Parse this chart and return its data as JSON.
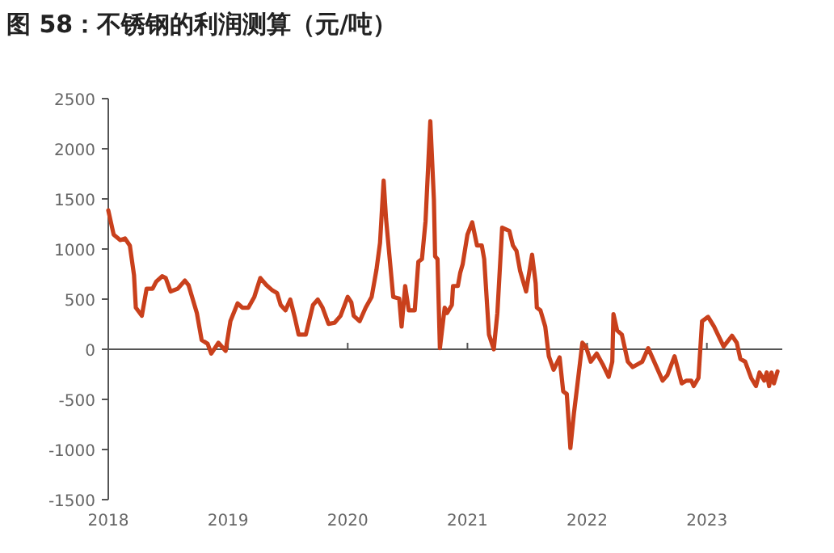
{
  "chart_data": {
    "type": "line",
    "title": "图 58：不锈钢的利润测算（元/吨）",
    "x": [
      2018.0,
      2018.045,
      2018.1,
      2018.14,
      2018.18,
      2018.215,
      2018.23,
      2018.28,
      2018.32,
      2018.37,
      2018.4,
      2018.45,
      2018.48,
      2018.52,
      2018.58,
      2018.64,
      2018.67,
      2018.74,
      2018.78,
      2018.83,
      2018.86,
      2018.92,
      2018.98,
      2019.02,
      2019.08,
      2019.12,
      2019.17,
      2019.22,
      2019.27,
      2019.32,
      2019.37,
      2019.41,
      2019.44,
      2019.48,
      2019.52,
      2019.56,
      2019.59,
      2019.65,
      2019.71,
      2019.75,
      2019.79,
      2019.84,
      2019.89,
      2019.94,
      2020.0,
      2020.03,
      2020.05,
      2020.1,
      2020.15,
      2020.2,
      2020.24,
      2020.27,
      2020.3,
      2020.32,
      2020.38,
      2020.43,
      2020.45,
      2020.48,
      2020.51,
      2020.56,
      2020.59,
      2020.62,
      2020.65,
      2020.69,
      2020.72,
      2020.73,
      2020.75,
      2020.77,
      2020.81,
      2020.83,
      2020.87,
      2020.88,
      2020.92,
      2020.94,
      2020.96,
      2021.0,
      2021.04,
      2021.08,
      2021.12,
      2021.14,
      2021.18,
      2021.22,
      2021.25,
      2021.29,
      2021.35,
      2021.38,
      2021.41,
      2021.44,
      2021.49,
      2021.54,
      2021.57,
      2021.58,
      2021.61,
      2021.65,
      2021.68,
      2021.72,
      2021.77,
      2021.8,
      2021.83,
      2021.86,
      2021.89,
      2021.92,
      2021.96,
      2021.99,
      2022.03,
      2022.08,
      2022.13,
      2022.18,
      2022.21,
      2022.22,
      2022.25,
      2022.29,
      2022.34,
      2022.38,
      2022.42,
      2022.46,
      2022.51,
      2022.56,
      2022.59,
      2022.63,
      2022.67,
      2022.73,
      2022.79,
      2022.83,
      2022.87,
      2022.89,
      2022.93,
      2022.96,
      2023.01,
      2023.06,
      2023.14,
      2023.21,
      2023.25,
      2023.28,
      2023.32,
      2023.37,
      2023.41,
      2023.44,
      2023.48,
      2023.5,
      2023.52,
      2023.54,
      2023.56,
      2023.59
    ],
    "series": [
      {
        "color": "#c9401c",
        "values": [
          1385,
          1143,
          1089,
          1105,
          1035,
          738,
          415,
          334,
          604,
          604,
          674,
          728,
          711,
          577,
          604,
          685,
          641,
          361,
          92,
          54,
          -43,
          65,
          -16,
          280,
          458,
          415,
          415,
          523,
          711,
          641,
          588,
          561,
          442,
          388,
          496,
          307,
          146,
          146,
          442,
          496,
          415,
          253,
          264,
          334,
          523,
          469,
          334,
          280,
          415,
          523,
          792,
          1062,
          1682,
          1304,
          523,
          507,
          226,
          631,
          388,
          388,
          873,
          900,
          1277,
          2275,
          1493,
          927,
          900,
          11,
          415,
          361,
          442,
          631,
          631,
          765,
          846,
          1143,
          1267,
          1035,
          1035,
          900,
          146,
          0,
          361,
          1213,
          1180,
          1035,
          981,
          782,
          577,
          943,
          658,
          415,
          388,
          226,
          -70,
          -205,
          -81,
          -420,
          -447,
          -986,
          -636,
          -340,
          65,
          27,
          -124,
          -43,
          -151,
          -275,
          -124,
          350,
          189,
          146,
          -124,
          -178,
          -151,
          -124,
          11,
          -124,
          -205,
          -313,
          -259,
          -70,
          -340,
          -313,
          -313,
          -367,
          -286,
          280,
          323,
          226,
          27,
          135,
          65,
          -97,
          -124,
          -286,
          -367,
          -232,
          -313,
          -232,
          -367,
          -232,
          -340,
          -221
        ]
      }
    ],
    "xlim": [
      2018,
      2023.63
    ],
    "xticks": [
      2018,
      2019,
      2020,
      2021,
      2022,
      2023
    ],
    "ylim": [
      -1500,
      2500
    ],
    "yticks": [
      -1500,
      -1000,
      -500,
      0,
      500,
      1000,
      1500,
      2000,
      2500
    ],
    "marker": "none",
    "line_style": "solid"
  }
}
